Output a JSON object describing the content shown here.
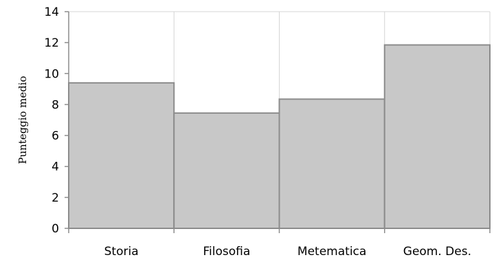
{
  "chart_data": {
    "type": "bar",
    "categories": [
      "Storia",
      "Filosofia",
      "Metematica",
      "Geom. Des."
    ],
    "values": [
      9.4,
      7.45,
      8.35,
      11.85
    ],
    "ylabel": "Punteggio medio",
    "xlabel": "",
    "ylim": [
      0,
      14
    ],
    "yticks": [
      "0",
      "2",
      "4",
      "6",
      "8",
      "10",
      "12",
      "14"
    ],
    "grid": true,
    "legend": "none"
  },
  "colors": {
    "bar_fill": "#c8c8c8",
    "bar_stroke": "#8c8c8c",
    "grid": "#d4d4d4",
    "axis": "#8c8c8c"
  }
}
